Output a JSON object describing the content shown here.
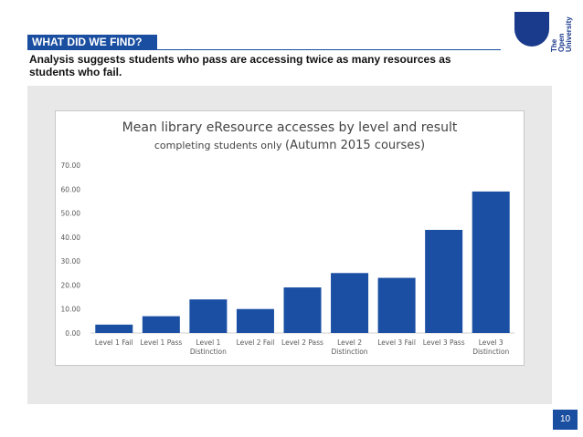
{
  "header": {
    "tag": "WHAT DID WE FIND?",
    "subtitle": "Analysis suggests students who pass are accessing twice as many resources as students who fail."
  },
  "logo": {
    "lines": [
      "The",
      "Open",
      "University"
    ]
  },
  "colors": {
    "brand": "#1a4ea0",
    "bar": "#1a4fa3",
    "panel": "#e8e8e8"
  },
  "page_number": "10",
  "chart_data": {
    "type": "bar",
    "title": "Mean library eResource accesses by level and result",
    "subtitle_small": "completing students only",
    "subtitle_large": "(Autumn 2015 courses)",
    "categories": [
      [
        "Level 1 Fail"
      ],
      [
        "Level 1 Pass"
      ],
      [
        "Level 1",
        "Distinction"
      ],
      [
        "Level 2 Fail"
      ],
      [
        "Level 2 Pass"
      ],
      [
        "Level 2",
        "Distinction"
      ],
      [
        "Level 3 Fail"
      ],
      [
        "Level 3 Pass"
      ],
      [
        "Level 3",
        "Distinction"
      ]
    ],
    "values": [
      3.5,
      7.0,
      14.0,
      10.0,
      19.0,
      25.0,
      23.0,
      43.0,
      59.0
    ],
    "ylim": [
      0,
      70
    ],
    "yticks": [
      "0.00",
      "10.00",
      "20.00",
      "30.00",
      "40.00",
      "50.00",
      "60.00",
      "70.00"
    ],
    "grid": false,
    "legend": "none"
  }
}
